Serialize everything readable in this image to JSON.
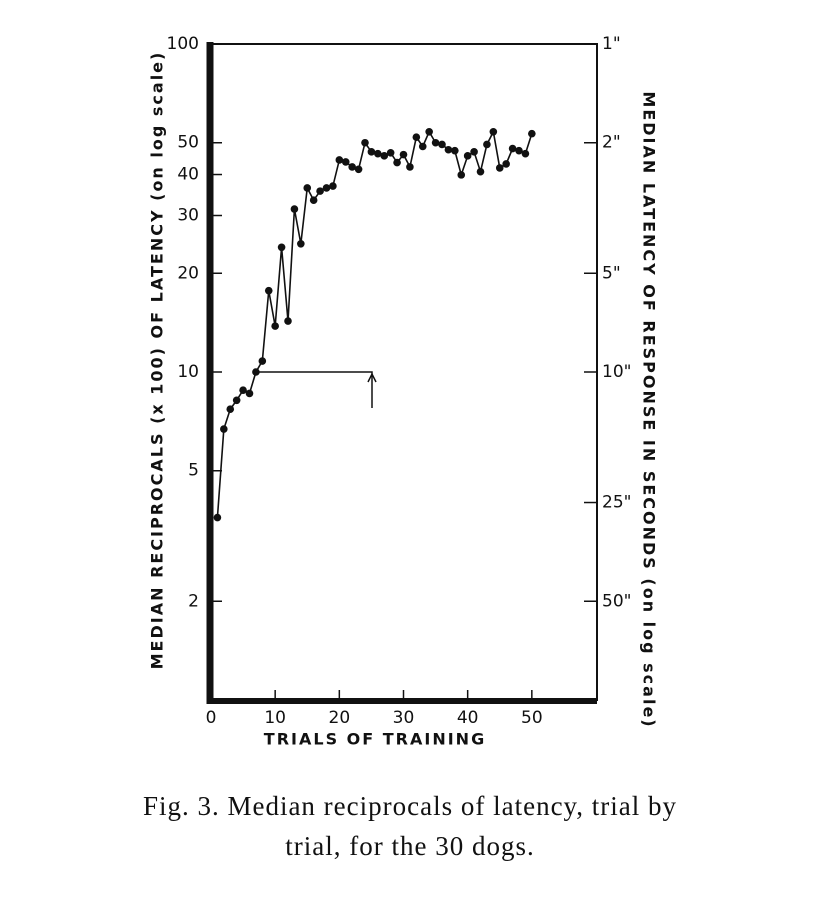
{
  "chart_data": {
    "type": "line",
    "y_label": "MEDIAN RECIPROCALS (x 100) OF LATENCY (on log scale)",
    "y2_label": "MEDIAN LATENCY OF RESPONSE IN SECONDS (on log scale)",
    "x_label": "TRIALS OF TRAINING",
    "caption": "Fig. 3. Median reciprocals of latency, trial by trial, for the 30 dogs.",
    "x": [
      1,
      2,
      3,
      4,
      5,
      6,
      7,
      8,
      9,
      10,
      11,
      12,
      13,
      14,
      15,
      16,
      17,
      18,
      19,
      20,
      21,
      22,
      23,
      24,
      25,
      26,
      27,
      28,
      29,
      30,
      31,
      32,
      33,
      34,
      35,
      36,
      37,
      38,
      39,
      40,
      41,
      42,
      43,
      44,
      45,
      46,
      47,
      48,
      49,
      50
    ],
    "series": [
      {
        "color": "#111111",
        "values": [
          3.6,
          6.7,
          7.7,
          8.2,
          8.8,
          8.6,
          10,
          10.8,
          17.7,
          13.8,
          24,
          14.3,
          31.4,
          24.6,
          36.4,
          33.4,
          35.6,
          36.4,
          36.9,
          44.3,
          43.7,
          42.2,
          41.5,
          50,
          46.9,
          46.3,
          45.6,
          46.6,
          43.5,
          46,
          42.2,
          52,
          48.7,
          54,
          50,
          49.4,
          47.6,
          47.3,
          39.9,
          45.6,
          46.9,
          40.8,
          49.4,
          54,
          41.9,
          43.1,
          48,
          47.3,
          46.3,
          53.3
        ]
      }
    ],
    "xlim": [
      0,
      60
    ],
    "xticks": [
      0,
      10,
      20,
      30,
      40,
      50
    ],
    "ylim": [
      1,
      100
    ],
    "yticks": [
      2,
      5,
      10,
      20,
      30,
      40,
      50,
      100
    ],
    "log_y": true,
    "y2lim": [
      100,
      1
    ],
    "y2ticks": [
      {
        "value": 1,
        "label": "1\""
      },
      {
        "value": 2,
        "label": "2\""
      },
      {
        "value": 5,
        "label": "5\""
      },
      {
        "value": 10,
        "label": "10\""
      },
      {
        "value": 25,
        "label": "25\""
      },
      {
        "value": 50,
        "label": "50\""
      }
    ]
  }
}
